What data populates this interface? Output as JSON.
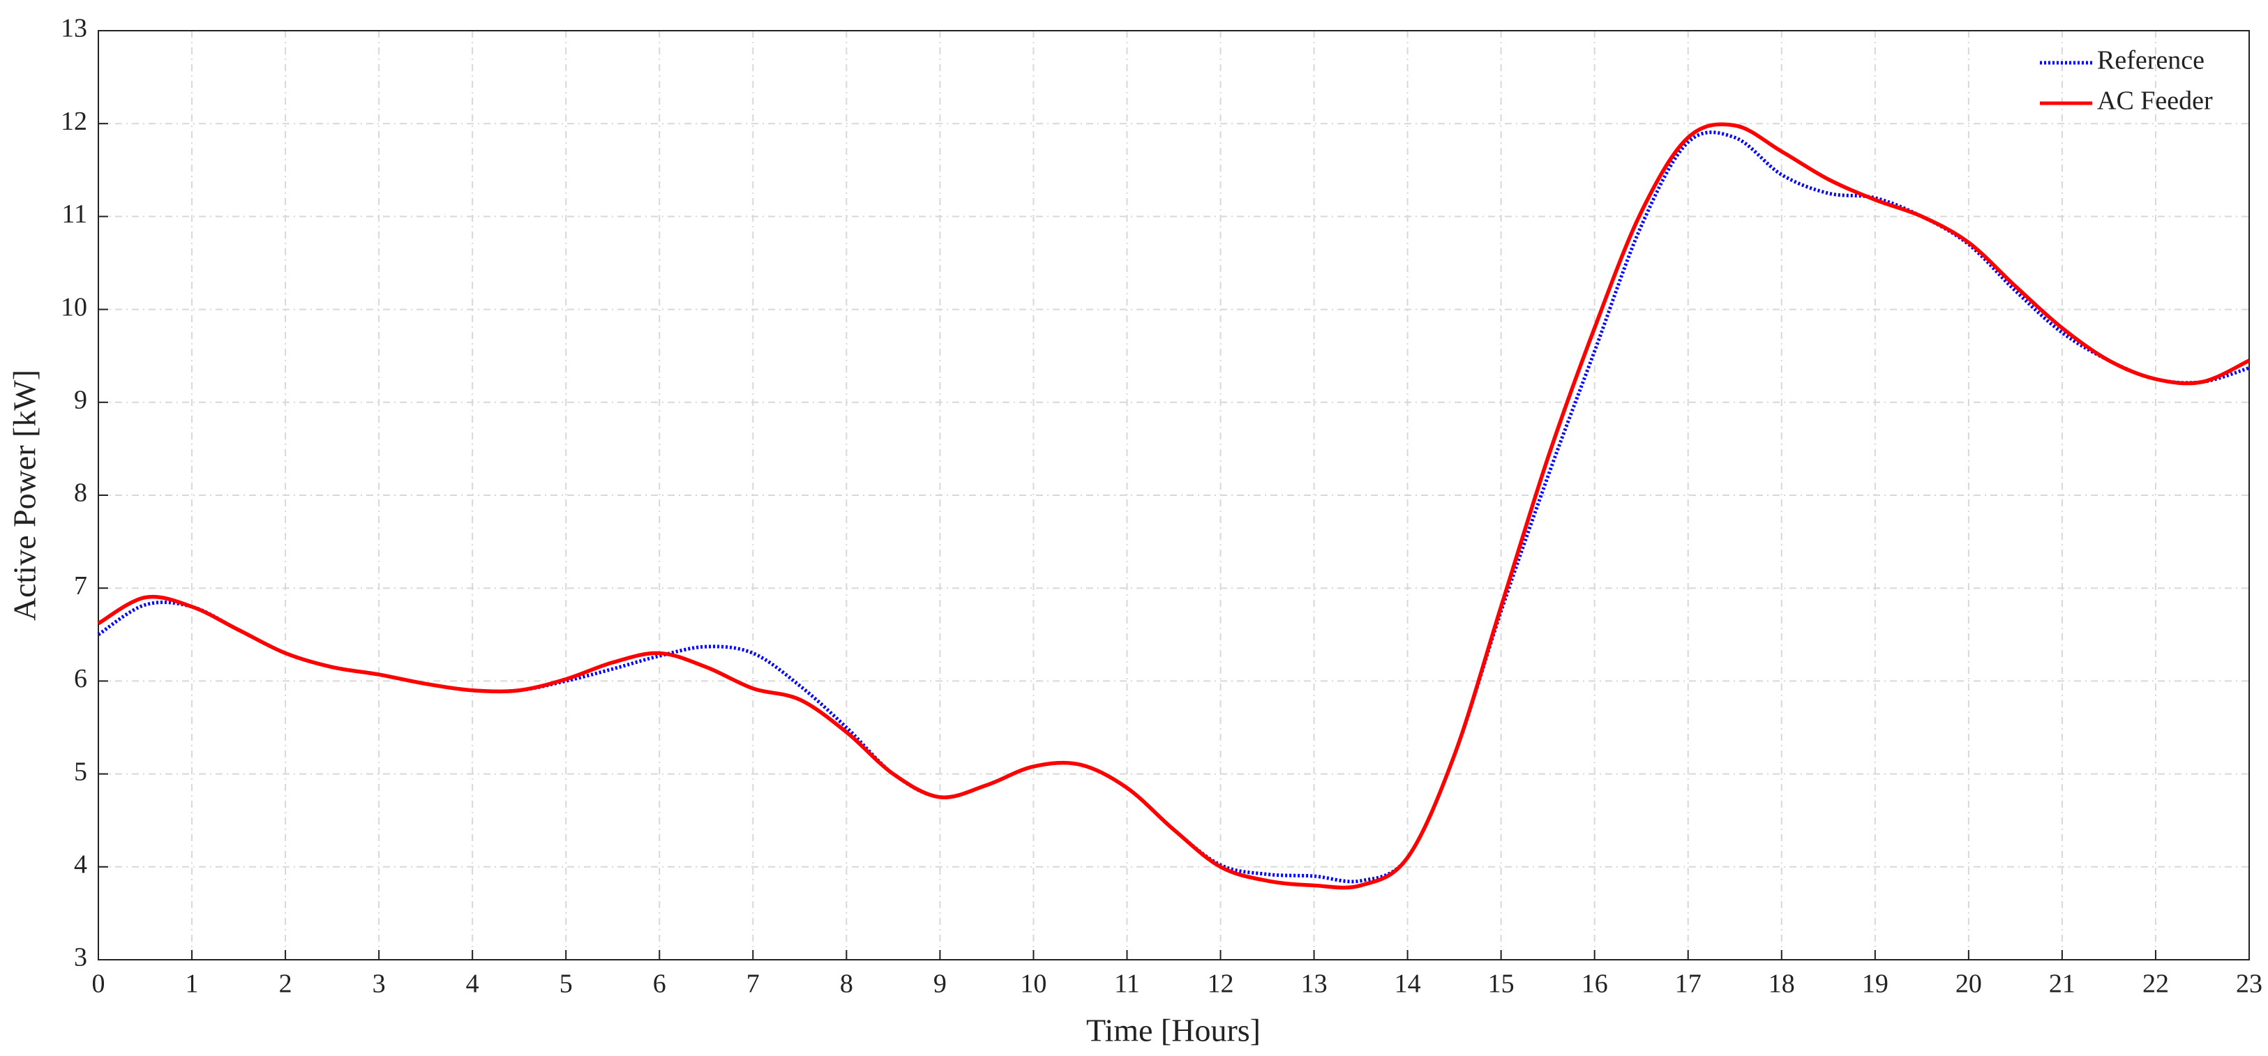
{
  "chart_data": {
    "type": "line",
    "xlabel": "Time [Hours]",
    "ylabel": "Active Power [kW]",
    "x": [
      0,
      0.5,
      1,
      1.5,
      2,
      2.5,
      3,
      3.5,
      4,
      4.5,
      5,
      5.5,
      6,
      6.5,
      7,
      7.5,
      8,
      8.5,
      9,
      9.5,
      10,
      10.5,
      11,
      11.5,
      12,
      12.5,
      13,
      13.5,
      14,
      14.5,
      15,
      15.5,
      16,
      16.5,
      17,
      17.5,
      18,
      18.5,
      19,
      19.5,
      20,
      20.5,
      21,
      21.5,
      22,
      22.5,
      23
    ],
    "series": [
      {
        "name": "Reference",
        "color": "#0000ff",
        "linestyle": "dotted",
        "values": [
          6.5,
          6.82,
          6.8,
          6.55,
          6.3,
          6.15,
          6.07,
          5.97,
          5.9,
          5.9,
          6.0,
          6.13,
          6.27,
          6.37,
          6.3,
          5.95,
          5.5,
          5.0,
          4.75,
          4.88,
          5.08,
          5.1,
          4.85,
          4.4,
          4.02,
          3.92,
          3.9,
          3.85,
          4.1,
          5.2,
          6.75,
          8.2,
          9.55,
          10.9,
          11.8,
          11.85,
          11.45,
          11.25,
          11.2,
          11.0,
          10.7,
          10.2,
          9.75,
          9.45,
          9.25,
          9.22,
          9.37
        ]
      },
      {
        "name": "AC Feeder",
        "color": "#ff0000",
        "linestyle": "solid",
        "values": [
          6.62,
          6.9,
          6.8,
          6.55,
          6.3,
          6.15,
          6.07,
          5.97,
          5.9,
          5.9,
          6.02,
          6.2,
          6.3,
          6.15,
          5.92,
          5.8,
          5.45,
          5.0,
          4.75,
          4.88,
          5.08,
          5.1,
          4.85,
          4.4,
          4.0,
          3.85,
          3.8,
          3.8,
          4.1,
          5.2,
          6.8,
          8.4,
          9.8,
          11.05,
          11.85,
          11.98,
          11.7,
          11.4,
          11.18,
          11.0,
          10.72,
          10.25,
          9.8,
          9.45,
          9.25,
          9.22,
          9.45
        ]
      }
    ],
    "xlim": [
      0,
      23
    ],
    "xticks": [
      0,
      1,
      2,
      3,
      4,
      5,
      6,
      7,
      8,
      9,
      10,
      11,
      12,
      13,
      14,
      15,
      16,
      17,
      18,
      19,
      20,
      21,
      22,
      23
    ],
    "ylim": [
      3,
      13
    ],
    "yticks": [
      3,
      4,
      5,
      6,
      7,
      8,
      9,
      10,
      11,
      12,
      13
    ],
    "grid": true,
    "legend": "upper right"
  }
}
